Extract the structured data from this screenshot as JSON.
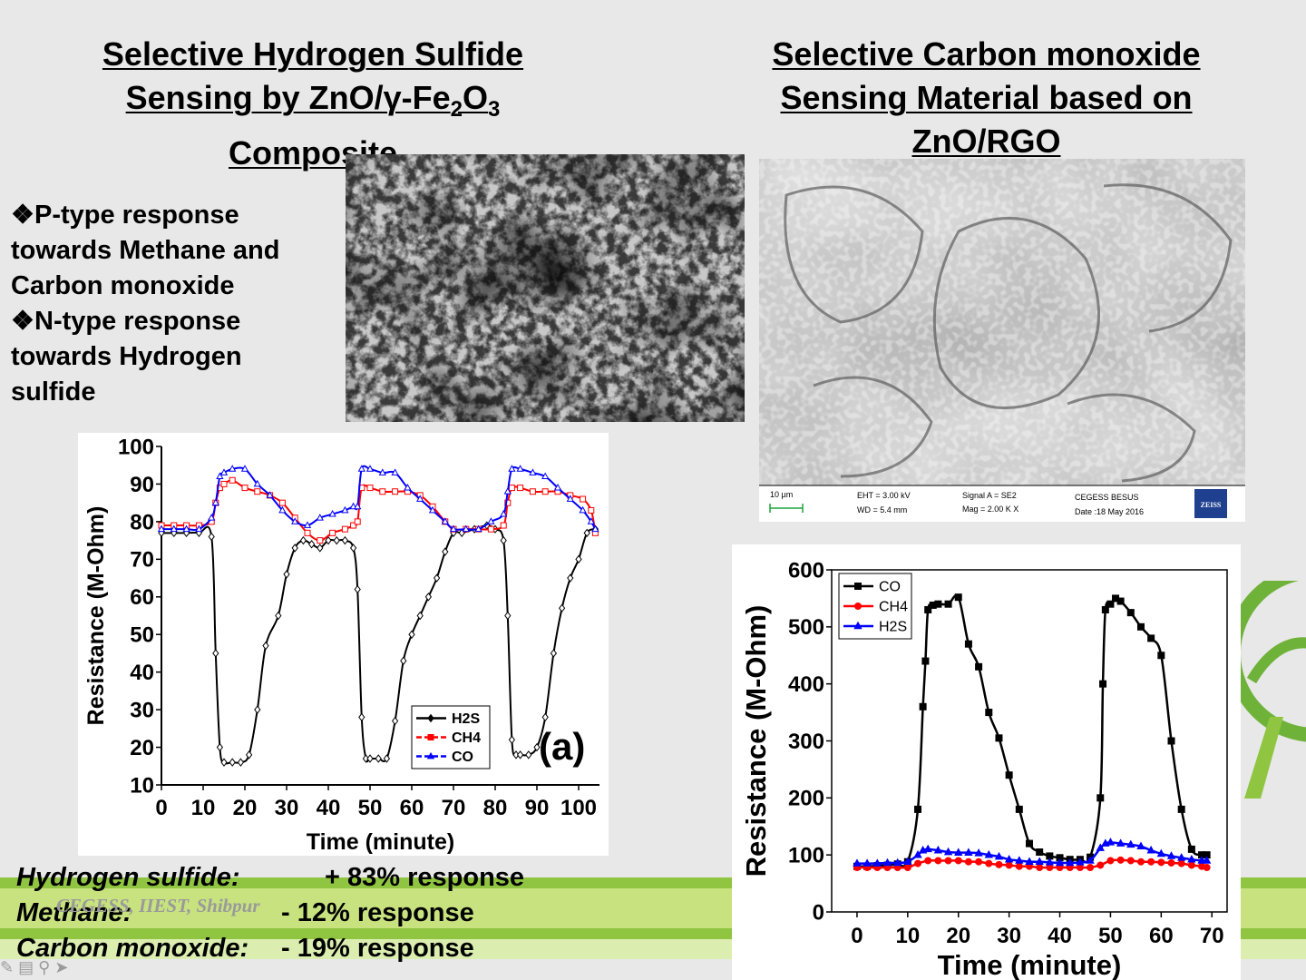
{
  "slide": {
    "left_title": [
      "Selective Hydrogen Sulfide",
      "Sensing by ZnO/γ-Fe",
      "2",
      "O",
      "3",
      "Composite"
    ],
    "right_title": [
      "Selective Carbon monoxide",
      "Sensing Material based on",
      "ZnO/RGO"
    ],
    "bullets": [
      {
        "symbol": "❖",
        "lines": [
          "P-type response",
          "towards Methane and",
          "Carbon monoxide"
        ]
      },
      {
        "symbol": "❖",
        "lines": [
          "N-type response",
          "towards Hydrogen",
          "sulfide"
        ]
      }
    ],
    "responses": [
      {
        "name": "Hydrogen sulfide:",
        "value": "+ 83% response"
      },
      {
        "name": "Methane:",
        "value": "- 12% response"
      },
      {
        "name": "Carbon monoxide:",
        "value": "- 19% response"
      }
    ],
    "watermark": "CEGESS, IIEST, Shibpur",
    "sem_info": {
      "scale": "10 µm",
      "eht": "EHT =  3.00 kV",
      "wd": "WD =  5.4 mm",
      "signal": "Signal A = SE2",
      "mag": "Mag =    2.00 K X",
      "org": "CEGESS BESUS",
      "date": "Date :18 May 2016",
      "brand": "ZEISS"
    },
    "colors": {
      "background": "#e8e8e8",
      "stripe_dark": "#8fc541",
      "stripe_light": "#c7e27f",
      "accent_green": "#6fb23a"
    }
  },
  "chart_data": [
    {
      "type": "line",
      "annotation": "(a)",
      "xlabel": "Time (minute)",
      "ylabel": "Resistance (M-Ohm)",
      "xlim": [
        0,
        105
      ],
      "ylim": [
        10,
        100
      ],
      "xticks": [
        0,
        10,
        20,
        30,
        40,
        50,
        60,
        70,
        80,
        90,
        100
      ],
      "yticks": [
        10,
        20,
        30,
        40,
        50,
        60,
        70,
        80,
        90,
        100
      ],
      "legend": "bottom-right",
      "series": [
        {
          "name": "H2S",
          "color": "#000000",
          "marker": "diamond",
          "x": [
            0,
            3,
            6,
            9,
            12,
            13,
            14,
            15,
            17,
            19,
            21,
            23,
            25,
            28,
            30,
            32,
            34,
            36,
            38,
            40,
            42,
            44,
            46,
            47,
            48,
            49,
            50,
            52,
            54,
            56,
            58,
            60,
            62,
            64,
            66,
            68,
            70,
            72,
            75,
            78,
            80,
            82,
            83,
            84,
            85,
            86,
            88,
            90,
            92,
            94,
            96,
            98,
            100,
            102,
            104
          ],
          "y": [
            77,
            77,
            77,
            77,
            76,
            45,
            20,
            16,
            16,
            16,
            18,
            30,
            47,
            55,
            66,
            73,
            75,
            74,
            73,
            75,
            75,
            75,
            73,
            62,
            28,
            17,
            17,
            17,
            17,
            27,
            43,
            50,
            55,
            60,
            65,
            72,
            77,
            77,
            78,
            79,
            78,
            75,
            55,
            22,
            18,
            18,
            18,
            20,
            28,
            45,
            57,
            65,
            70,
            77,
            78
          ]
        },
        {
          "name": "CH4",
          "color": "#ff0000",
          "marker": "square",
          "x": [
            0,
            3,
            6,
            9,
            12,
            13,
            14,
            15,
            17,
            20,
            23,
            26,
            29,
            32,
            35,
            38,
            41,
            44,
            46,
            47,
            48,
            50,
            53,
            56,
            59,
            62,
            65,
            68,
            70,
            73,
            76,
            79,
            82,
            83,
            84,
            86,
            89,
            92,
            95,
            98,
            101,
            103,
            104
          ],
          "y": [
            79,
            79,
            79,
            79,
            80,
            85,
            89,
            90,
            91,
            89,
            88,
            87,
            85,
            81,
            77,
            75,
            77,
            78,
            79,
            80,
            89,
            89,
            88,
            88,
            88,
            87,
            84,
            80,
            78,
            78,
            78,
            78,
            79,
            85,
            89,
            89,
            88,
            88,
            88,
            87,
            86,
            83,
            77
          ]
        },
        {
          "name": "CO",
          "color": "#0000ff",
          "marker": "triangle",
          "x": [
            0,
            3,
            6,
            9,
            12,
            13,
            14,
            15,
            17,
            20,
            23,
            26,
            29,
            32,
            35,
            38,
            41,
            44,
            46,
            47,
            48,
            50,
            53,
            56,
            59,
            62,
            65,
            68,
            70,
            73,
            76,
            79,
            82,
            83,
            84,
            86,
            89,
            92,
            95,
            98,
            101,
            103,
            104
          ],
          "y": [
            78,
            78,
            78,
            78,
            81,
            85,
            92,
            93,
            94,
            94,
            90,
            87,
            83,
            80,
            79,
            81,
            82,
            83,
            84,
            84,
            94,
            94,
            93,
            93,
            89,
            86,
            83,
            80,
            78,
            78,
            78,
            80,
            82,
            88,
            94,
            94,
            93,
            92,
            89,
            86,
            83,
            80,
            78
          ]
        }
      ]
    },
    {
      "type": "line",
      "xlabel": "Time (minute)",
      "ylabel": "Resistance (M-Ohm)",
      "xlim": [
        -5,
        73
      ],
      "ylim": [
        0,
        600
      ],
      "xticks": [
        0,
        10,
        20,
        30,
        40,
        50,
        60,
        70
      ],
      "yticks": [
        0,
        100,
        200,
        300,
        400,
        500,
        600
      ],
      "legend": "top-left",
      "series": [
        {
          "name": "CO",
          "color": "#000000",
          "marker": "square",
          "x": [
            0,
            2,
            4,
            6,
            8,
            10,
            12,
            13,
            13.5,
            14,
            15,
            16,
            18,
            20,
            22,
            24,
            26,
            28,
            30,
            32,
            34,
            36,
            38,
            40,
            42,
            44,
            46,
            48,
            48.5,
            49,
            50,
            51,
            52,
            54,
            56,
            58,
            60,
            62,
            64,
            66,
            68,
            69
          ],
          "y": [
            80,
            80,
            81,
            82,
            84,
            88,
            180,
            360,
            440,
            530,
            538,
            540,
            540,
            552,
            470,
            430,
            350,
            305,
            240,
            180,
            120,
            105,
            98,
            95,
            92,
            92,
            96,
            200,
            400,
            530,
            540,
            550,
            545,
            525,
            500,
            480,
            450,
            300,
            180,
            110,
            100,
            100
          ]
        },
        {
          "name": "CH4",
          "color": "#ff0000",
          "marker": "circle",
          "x": [
            0,
            2,
            4,
            6,
            8,
            10,
            12,
            14,
            16,
            18,
            20,
            22,
            24,
            26,
            28,
            30,
            32,
            34,
            36,
            38,
            40,
            42,
            44,
            46,
            48,
            50,
            52,
            54,
            56,
            58,
            60,
            62,
            64,
            66,
            68,
            69
          ],
          "y": [
            78,
            78,
            78,
            78,
            78,
            78,
            85,
            90,
            90,
            90,
            90,
            88,
            88,
            85,
            83,
            82,
            80,
            80,
            78,
            78,
            78,
            78,
            78,
            78,
            82,
            90,
            91,
            90,
            88,
            88,
            87,
            86,
            85,
            82,
            80,
            78
          ]
        },
        {
          "name": "H2S",
          "color": "#0000ff",
          "marker": "triangle",
          "x": [
            0,
            2,
            4,
            6,
            8,
            10,
            12,
            13,
            14,
            16,
            18,
            20,
            22,
            24,
            26,
            28,
            30,
            32,
            34,
            36,
            38,
            40,
            42,
            44,
            46,
            48,
            49,
            50,
            52,
            54,
            56,
            58,
            60,
            62,
            64,
            66,
            68,
            69
          ],
          "y": [
            85,
            85,
            85,
            86,
            86,
            88,
            100,
            108,
            110,
            108,
            105,
            104,
            104,
            103,
            100,
            97,
            92,
            90,
            88,
            88,
            87,
            86,
            86,
            87,
            90,
            112,
            120,
            122,
            120,
            118,
            115,
            108,
            102,
            98,
            95,
            92,
            90,
            90
          ]
        }
      ]
    }
  ]
}
